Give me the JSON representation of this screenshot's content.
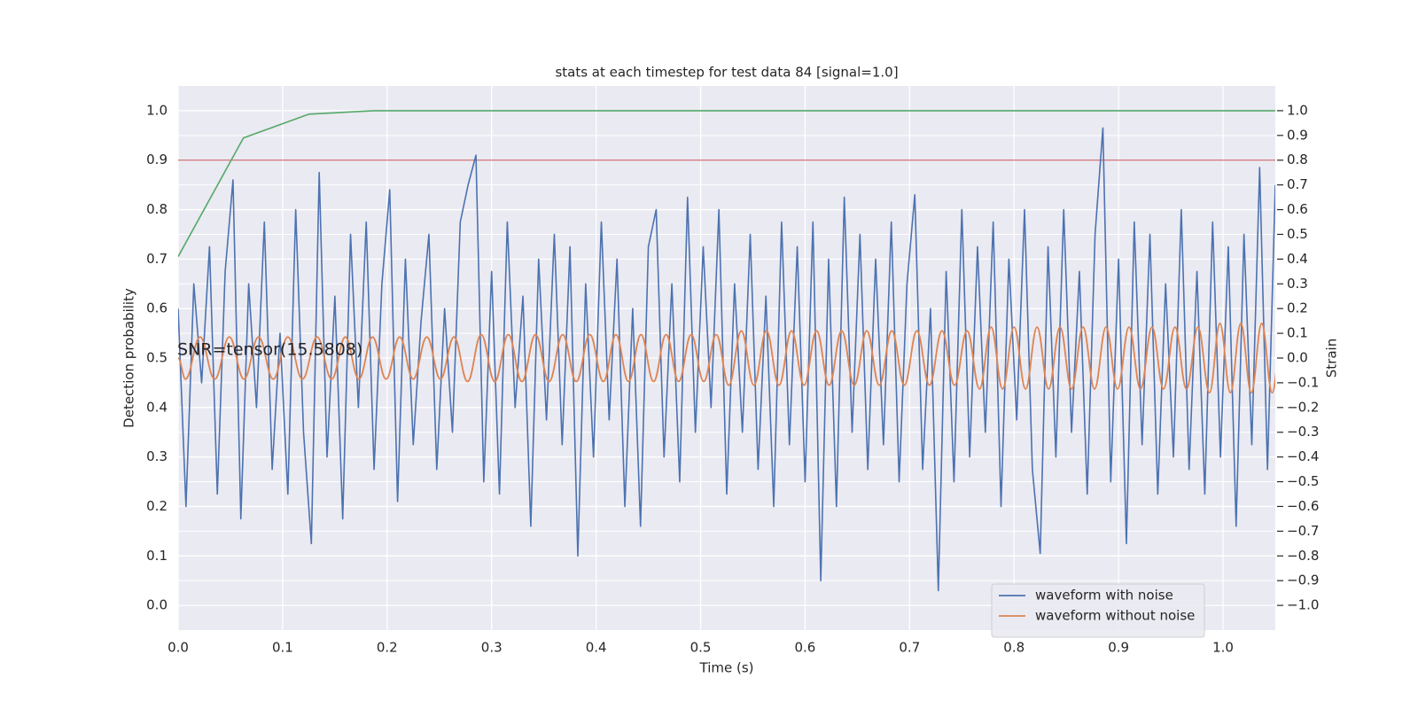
{
  "chart_data": {
    "type": "line",
    "title": "stats at each timestep for test data 84 [signal=1.0]",
    "xlabel": "Time (s)",
    "ylabel": "Detection probability",
    "y2label": "Strain",
    "annotation": "SNR=tensor(15.5808)",
    "xlim": [
      0,
      1.05
    ],
    "xticks": [
      {
        "value": 0,
        "label": "0.0"
      },
      0.1,
      0.2,
      0.3,
      0.4,
      0.5,
      0.6,
      0.7,
      0.8,
      0.9,
      {
        "value": 1,
        "label": "1.0"
      }
    ],
    "ylim": [
      -0.05,
      1.05
    ],
    "yticks": [
      {
        "value": 0,
        "label": "0.0"
      },
      0.1,
      0.2,
      0.3,
      0.4,
      0.5,
      0.6,
      0.7,
      0.8,
      0.9,
      {
        "value": 1,
        "label": "1.0"
      }
    ],
    "y2lim": [
      -1.1,
      1.1
    ],
    "y2ticks": [
      {
        "value": -1,
        "label": "−1.0"
      },
      {
        "value": -0.9,
        "label": "−0.9"
      },
      {
        "value": -0.8,
        "label": "−0.8"
      },
      {
        "value": -0.7,
        "label": "−0.7"
      },
      {
        "value": -0.6,
        "label": "−0.6"
      },
      {
        "value": -0.5,
        "label": "−0.5"
      },
      {
        "value": -0.4,
        "label": "−0.4"
      },
      {
        "value": -0.3,
        "label": "−0.3"
      },
      {
        "value": -0.2,
        "label": "−0.2"
      },
      {
        "value": -0.1,
        "label": "−0.1"
      },
      {
        "value": 0,
        "label": "0.0"
      },
      0.1,
      0.2,
      0.3,
      0.4,
      0.5,
      0.6,
      0.7,
      0.8,
      0.9,
      {
        "value": 1,
        "label": "1.0"
      }
    ],
    "grid": true,
    "legend": "lower right",
    "hlines": [
      {
        "value": 0.9,
        "color": "#c44e52"
      }
    ],
    "series": [
      {
        "color": "#55a868",
        "x": [
          0,
          0.0625,
          0.125,
          0.1875,
          1.05
        ],
        "values": [
          0.705,
          0.945,
          0.993,
          1.0,
          1.0
        ]
      },
      {
        "name": "waveform with noise",
        "color": "#4c72b0",
        "axis": "y2",
        "x": [
          0,
          0.0075,
          0.015,
          0.0225,
          0.03,
          0.0375,
          0.045,
          0.0525,
          0.06,
          0.0675,
          0.075,
          0.0825,
          0.09,
          0.0975,
          0.105,
          0.1125,
          0.12,
          0.1275,
          0.135,
          0.1425,
          0.15,
          0.1575,
          0.165,
          0.1725,
          0.18,
          0.1875,
          0.195,
          0.2025,
          0.21,
          0.2175,
          0.225,
          0.2325,
          0.24,
          0.2475,
          0.255,
          0.2625,
          0.27,
          0.2775,
          0.285,
          0.2925,
          0.3,
          0.3075,
          0.315,
          0.3225,
          0.33,
          0.3375,
          0.345,
          0.3525,
          0.36,
          0.3675,
          0.375,
          0.3825,
          0.39,
          0.3975,
          0.405,
          0.4125,
          0.42,
          0.4275,
          0.435,
          0.4425,
          0.45,
          0.4575,
          0.465,
          0.4725,
          0.48,
          0.4875,
          0.495,
          0.5025,
          0.51,
          0.5175,
          0.525,
          0.5325,
          0.54,
          0.5475,
          0.555,
          0.5625,
          0.57,
          0.5775,
          0.585,
          0.5925,
          0.6,
          0.6075,
          0.615,
          0.6225,
          0.63,
          0.6375,
          0.645,
          0.6525,
          0.66,
          0.6675,
          0.675,
          0.6825,
          0.69,
          0.6975,
          0.705,
          0.7125,
          0.72,
          0.7275,
          0.735,
          0.7425,
          0.75,
          0.7575,
          0.765,
          0.7725,
          0.78,
          0.7875,
          0.795,
          0.8025,
          0.81,
          0.8175,
          0.825,
          0.8325,
          0.84,
          0.8475,
          0.855,
          0.8625,
          0.87,
          0.8775,
          0.885,
          0.8925,
          0.9,
          0.9075,
          0.915,
          0.9225,
          0.93,
          0.9375,
          0.945,
          0.9525,
          0.96,
          0.9675,
          0.975,
          0.9825,
          0.99,
          0.9975,
          1.005,
          1.0125,
          1.02,
          1.0275,
          1.035,
          1.0425,
          1.05
        ],
        "values": [
          0.2,
          -0.6,
          0.3,
          -0.1,
          0.45,
          -0.55,
          0.35,
          0.72,
          -0.65,
          0.3,
          -0.2,
          0.55,
          -0.45,
          0.1,
          -0.55,
          0.6,
          -0.3,
          -0.75,
          0.75,
          -0.4,
          0.25,
          -0.65,
          0.5,
          -0.2,
          0.55,
          -0.45,
          0.3,
          0.68,
          -0.58,
          0.4,
          -0.35,
          0.15,
          0.5,
          -0.45,
          0.2,
          -0.3,
          0.55,
          0.7,
          0.82,
          -0.5,
          0.35,
          -0.55,
          0.55,
          -0.2,
          0.25,
          -0.68,
          0.4,
          -0.25,
          0.5,
          -0.35,
          0.45,
          -0.8,
          0.3,
          -0.4,
          0.55,
          -0.25,
          0.4,
          -0.6,
          0.2,
          -0.68,
          0.45,
          0.6,
          -0.4,
          0.3,
          -0.5,
          0.65,
          -0.3,
          0.45,
          -0.2,
          0.6,
          -0.55,
          0.3,
          -0.3,
          0.5,
          -0.45,
          0.25,
          -0.6,
          0.55,
          -0.35,
          0.45,
          -0.5,
          0.55,
          -0.9,
          0.4,
          -0.6,
          0.65,
          -0.3,
          0.5,
          -0.45,
          0.4,
          -0.35,
          0.55,
          -0.5,
          0.3,
          0.66,
          -0.45,
          0.2,
          -0.94,
          0.35,
          -0.5,
          0.6,
          -0.4,
          0.45,
          -0.3,
          0.55,
          -0.6,
          0.4,
          -0.25,
          0.6,
          -0.45,
          -0.79,
          0.45,
          -0.4,
          0.6,
          -0.3,
          0.35,
          -0.55,
          0.5,
          0.93,
          -0.5,
          0.4,
          -0.75,
          0.55,
          -0.35,
          0.5,
          -0.55,
          0.3,
          -0.4,
          0.6,
          -0.45,
          0.35,
          -0.55,
          0.55,
          -0.4,
          0.45,
          -0.68,
          0.5,
          -0.35,
          0.77,
          -0.45,
          0.7
        ]
      },
      {
        "name": "waveform without noise",
        "color": "#dd8452",
        "axis": "y2",
        "smooth": true,
        "x": [
          0,
          0.007,
          0.021,
          0.035,
          0.049,
          0.063,
          0.077,
          0.091,
          0.105,
          0.119,
          0.133,
          0.147,
          0.16,
          0.173,
          0.186,
          0.199,
          0.212,
          0.225,
          0.238,
          0.251,
          0.264,
          0.277,
          0.29,
          0.303,
          0.316,
          0.329,
          0.342,
          0.355,
          0.368,
          0.381,
          0.394,
          0.407,
          0.419,
          0.431,
          0.443,
          0.455,
          0.467,
          0.479,
          0.491,
          0.503,
          0.515,
          0.527,
          0.539,
          0.551,
          0.563,
          0.575,
          0.587,
          0.599,
          0.611,
          0.623,
          0.635,
          0.647,
          0.659,
          0.671,
          0.683,
          0.695,
          0.707,
          0.719,
          0.731,
          0.743,
          0.755,
          0.767,
          0.778,
          0.789,
          0.8,
          0.811,
          0.822,
          0.833,
          0.844,
          0.855,
          0.866,
          0.877,
          0.888,
          0.899,
          0.91,
          0.921,
          0.932,
          0.943,
          0.954,
          0.965,
          0.976,
          0.987,
          0.997,
          1.007,
          1.017,
          1.027,
          1.037,
          1.047,
          1.057
        ],
        "values": [
          0,
          -0.085,
          0.085,
          -0.085,
          0.085,
          -0.085,
          0.085,
          -0.085,
          0.085,
          -0.085,
          0.085,
          -0.085,
          0.085,
          -0.085,
          0.085,
          -0.085,
          0.085,
          -0.085,
          0.085,
          -0.085,
          0.085,
          -0.095,
          0.095,
          -0.095,
          0.095,
          -0.095,
          0.095,
          -0.095,
          0.095,
          -0.095,
          0.095,
          -0.095,
          0.095,
          -0.095,
          0.095,
          -0.095,
          0.095,
          -0.095,
          0.095,
          -0.095,
          0.095,
          -0.11,
          0.11,
          -0.11,
          0.11,
          -0.11,
          0.11,
          -0.11,
          0.11,
          -0.11,
          0.11,
          -0.11,
          0.11,
          -0.11,
          0.11,
          -0.11,
          0.11,
          -0.11,
          0.11,
          -0.11,
          0.11,
          -0.125,
          0.125,
          -0.125,
          0.125,
          -0.125,
          0.125,
          -0.125,
          0.125,
          -0.125,
          0.125,
          -0.125,
          0.125,
          -0.125,
          0.125,
          -0.125,
          0.125,
          -0.125,
          0.125,
          -0.125,
          0.125,
          -0.14,
          0.14,
          -0.14,
          0.14,
          -0.14,
          0.14,
          -0.14,
          0.14
        ]
      }
    ]
  }
}
